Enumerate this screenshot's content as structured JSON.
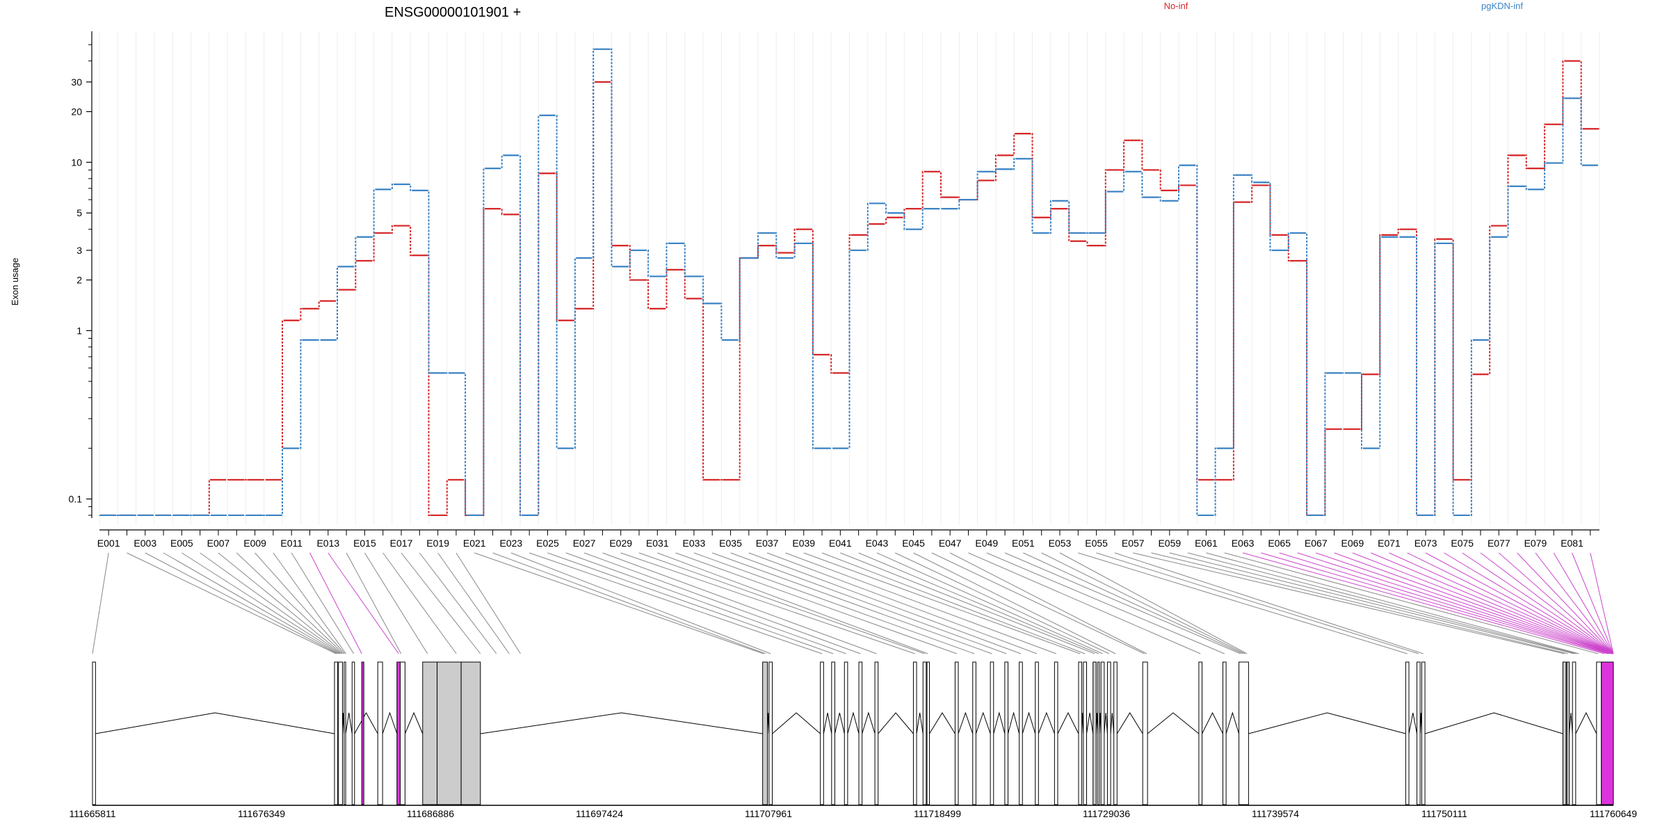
{
  "chart_data": {
    "type": "line",
    "title": "ENSG00000101901 +",
    "ylabel": "Exon usage",
    "yscale": "log",
    "ylim": [
      0.07,
      60
    ],
    "yticks": [
      0.1,
      1,
      2,
      3,
      5,
      10,
      20,
      30
    ],
    "legend": "top-right",
    "series": [
      {
        "name": "No-inf",
        "color": "#d62728",
        "values": [
          0.08,
          0.08,
          0.08,
          0.08,
          0.08,
          0.08,
          0.13,
          0.13,
          0.13,
          0.13,
          1.15,
          1.35,
          1.5,
          1.75,
          2.6,
          3.8,
          4.2,
          2.8,
          0.08,
          0.13,
          0.08,
          5.3,
          4.9,
          0.08,
          8.6,
          1.15,
          1.35,
          30,
          3.2,
          2.0,
          1.35,
          2.3,
          1.55,
          0.13,
          0.13,
          2.7,
          3.2,
          2.9,
          4.0,
          0.72,
          0.56,
          3.7,
          4.3,
          4.7,
          5.3,
          8.8,
          6.2,
          6.0,
          7.8,
          11,
          14.8,
          4.7,
          5.3,
          3.4,
          3.2,
          9.0,
          13.5,
          9.0,
          6.8,
          7.3,
          0.13,
          0.13,
          5.8,
          7.3,
          3.7,
          2.6,
          0.08,
          0.26,
          0.26,
          0.55,
          3.7,
          4.0,
          0.08,
          3.5,
          0.13,
          0.55,
          4.2,
          11,
          9.2,
          16.8,
          40,
          15.8
        ]
      },
      {
        "name": "pgKDN-inf",
        "color": "#3b83c4",
        "values": [
          0.08,
          0.08,
          0.08,
          0.08,
          0.08,
          0.08,
          0.08,
          0.08,
          0.08,
          0.08,
          0.2,
          0.88,
          0.88,
          2.4,
          3.6,
          6.9,
          7.4,
          6.8,
          0.56,
          0.56,
          0.08,
          9.2,
          11,
          0.08,
          19,
          0.2,
          2.7,
          47,
          2.4,
          3.0,
          2.1,
          3.3,
          2.1,
          1.45,
          0.88,
          2.7,
          3.8,
          2.7,
          3.3,
          0.2,
          0.2,
          3.0,
          5.7,
          5.0,
          4.0,
          5.3,
          5.3,
          6.0,
          8.8,
          9.1,
          10.5,
          3.8,
          5.9,
          3.8,
          3.8,
          6.7,
          8.8,
          6.2,
          5.9,
          9.6,
          0.08,
          0.2,
          8.4,
          7.6,
          3.0,
          3.8,
          0.08,
          0.56,
          0.56,
          0.2,
          3.6,
          3.6,
          0.08,
          3.3,
          0.08,
          0.88,
          3.6,
          7.2,
          6.9,
          9.9,
          24,
          9.6
        ]
      }
    ],
    "xaxis_exon_labels": [
      "E001",
      "E003",
      "E005",
      "E007",
      "E009",
      "E011",
      "E013",
      "E015",
      "E017",
      "E019",
      "E021",
      "E023",
      "E025",
      "E027",
      "E029",
      "E031",
      "E033",
      "E035",
      "E037",
      "E039",
      "E041",
      "E043",
      "E045",
      "E047",
      "E049",
      "E051",
      "E053",
      "E055",
      "E057",
      "E059",
      "E061",
      "E063",
      "E065",
      "E067",
      "E069",
      "E071",
      "E073",
      "E075",
      "E077",
      "E079",
      "E081"
    ],
    "genomic_ticks": [
      "111665811",
      "111676349",
      "111686886",
      "111697424",
      "111707961",
      "111718499",
      "111729036",
      "111739574",
      "111750111",
      "111760649"
    ],
    "genomic_range": [
      111665811,
      111760649
    ],
    "exon_positions": [
      111665811,
      111681000,
      111681090,
      111681170,
      111681240,
      111681310,
      111681380,
      111681460,
      111681540,
      111681620,
      111682100,
      111682600,
      111684900,
      111685050,
      111686700,
      111688500,
      111690000,
      111691000,
      111691800,
      111692500,
      111707650,
      111707780,
      111708100,
      111711300,
      111712000,
      111712800,
      111713700,
      111714700,
      111717100,
      111717700,
      111717900,
      111719700,
      111720800,
      111721900,
      111722800,
      111723700,
      111724700,
      111725900,
      111727400,
      111727700,
      111728300,
      111728550,
      111728800,
      111729200,
      111729600,
      111731400,
      111731550,
      111734900,
      111736400,
      111737400,
      111737550,
      111737680,
      111737800,
      111747800,
      111748500,
      111748800,
      111757600,
      111757800,
      111758200,
      111758350,
      111758500,
      111759700,
      111760100,
      111760300,
      111760400,
      111760500,
      111760560,
      111760600,
      111760620,
      111760635,
      111760645,
      111760649,
      111760649,
      111760649,
      111760649,
      111760649,
      111760649,
      111760649,
      111760649,
      111760649,
      111760649,
      111760649
    ],
    "transcript_exons": [
      [
        111665811,
        111666000
      ],
      [
        111680900,
        111681100
      ],
      [
        111681150,
        111681400
      ],
      [
        111681500,
        111681600
      ],
      [
        111682000,
        111682150
      ],
      [
        111683600,
        111683900
      ],
      [
        111684800,
        111685300
      ],
      [
        111686400,
        111687300
      ],
      [
        111687300,
        111688800
      ],
      [
        111688800,
        111690000
      ],
      [
        111707600,
        111707900
      ],
      [
        111708000,
        111708200
      ],
      [
        111711200,
        111711400
      ],
      [
        111711900,
        111712100
      ],
      [
        111712700,
        111712900
      ],
      [
        111713600,
        111713800
      ],
      [
        111714600,
        111714800
      ],
      [
        111717000,
        111717200
      ],
      [
        111717600,
        111717800
      ],
      [
        111717850,
        111718000
      ],
      [
        111719600,
        111719800
      ],
      [
        111720700,
        111720900
      ],
      [
        111721800,
        111722000
      ],
      [
        111722700,
        111722900
      ],
      [
        111723600,
        111723800
      ],
      [
        111724600,
        111724800
      ],
      [
        111725800,
        111726000
      ],
      [
        111727300,
        111727500
      ],
      [
        111727600,
        111727800
      ],
      [
        111728200,
        111728400
      ],
      [
        111728500,
        111728600
      ],
      [
        111728700,
        111728900
      ],
      [
        111729100,
        111729300
      ],
      [
        111729500,
        111729700
      ],
      [
        111731300,
        111731600
      ],
      [
        111734800,
        111735000
      ],
      [
        111736300,
        111736500
      ],
      [
        111737300,
        111737900
      ],
      [
        111747700,
        111747900
      ],
      [
        111748400,
        111748600
      ],
      [
        111748700,
        111748900
      ],
      [
        111757500,
        111757700
      ],
      [
        111757750,
        111757900
      ],
      [
        111758100,
        111758300
      ],
      [
        111759600,
        111759900
      ],
      [
        111760000,
        111760649
      ]
    ],
    "shaded_exons": [
      [
        111686400,
        111687300
      ],
      [
        111687300,
        111688800
      ],
      [
        111688800,
        111690000
      ],
      [
        111707600,
        111707900
      ],
      [
        111728200,
        111728400
      ],
      [
        111757500,
        111757900
      ]
    ],
    "highlighted_exons": [
      [
        111682600,
        111682700
      ],
      [
        111684800,
        111685000
      ],
      [
        111759900,
        111760649
      ]
    ]
  }
}
